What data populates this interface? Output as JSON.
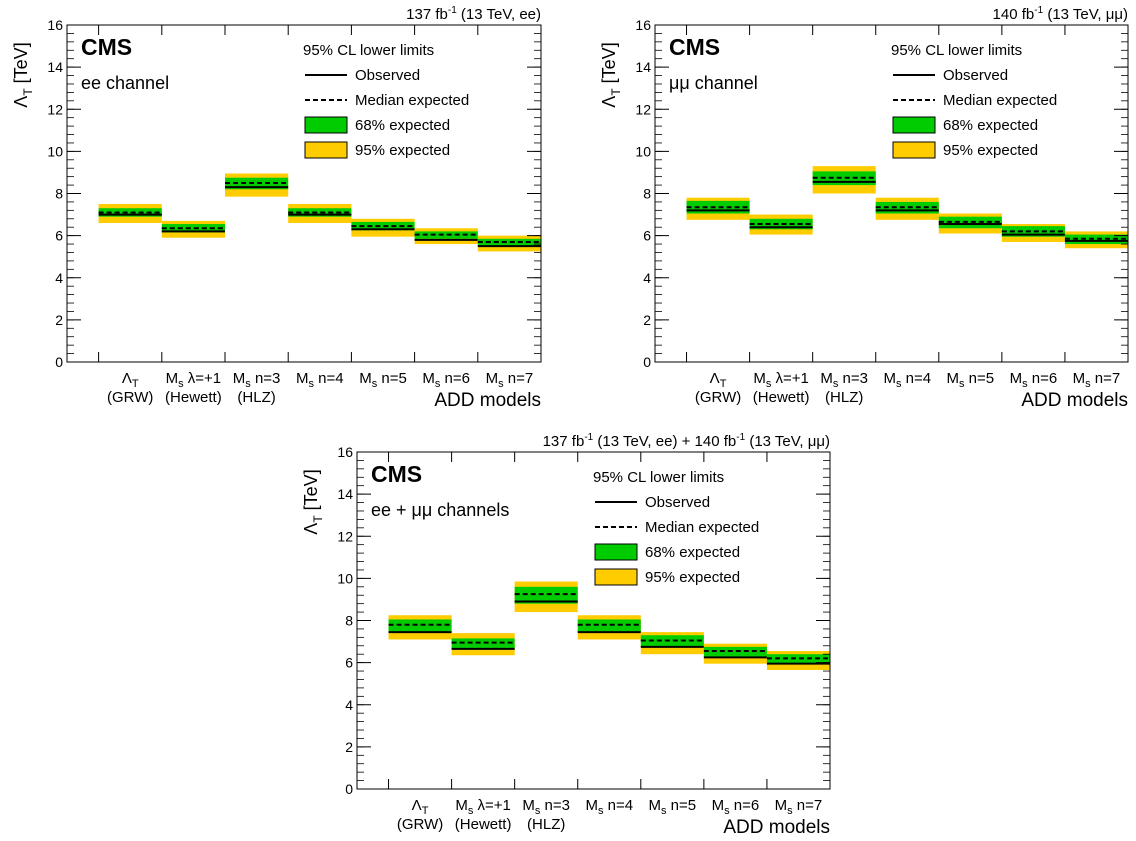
{
  "colors": {
    "band68": "#00cc00",
    "band95": "#ffcc00",
    "line": "#000000"
  },
  "categories": [
    "Λ_T (GRW)",
    "M_s λ=+1 (Hewett)",
    "M_s n=3 (HLZ)",
    "M_s n=4",
    "M_s n=5",
    "M_s n=6",
    "M_s n=7"
  ],
  "category_labels": [
    {
      "main": "Λ",
      "sub": "T",
      "rest": "",
      "line2": "(GRW)"
    },
    {
      "main": "M",
      "sub": "s",
      "rest": " λ=+1",
      "line2": "(Hewett)"
    },
    {
      "main": "M",
      "sub": "s",
      "rest": " n=3",
      "line2": "(HLZ)"
    },
    {
      "main": "M",
      "sub": "s",
      "rest": " n=4",
      "line2": ""
    },
    {
      "main": "M",
      "sub": "s",
      "rest": " n=5",
      "line2": ""
    },
    {
      "main": "M",
      "sub": "s",
      "rest": " n=6",
      "line2": ""
    },
    {
      "main": "M",
      "sub": "s",
      "rest": " n=7",
      "line2": ""
    }
  ],
  "yticks": [
    0,
    2,
    4,
    6,
    8,
    10,
    12,
    14,
    16
  ],
  "ylabel": {
    "main": "Λ",
    "sub": "T",
    "rest": " [TeV]"
  },
  "xlabel": "ADD models",
  "cms_label": "CMS",
  "legend": {
    "title": "95% CL lower limits",
    "observed": "Observed",
    "expected": "Median expected",
    "band68": "68% expected",
    "band95": "95% expected"
  },
  "chart_data": [
    {
      "type": "bar",
      "lumi_label": [
        {
          "t": "137 fb"
        },
        {
          "t": "-1",
          "sup": true
        },
        {
          "t": " (13 TeV, ee)"
        }
      ],
      "channel_label": "ee channel",
      "ylim": [
        0,
        16
      ],
      "categories": [
        "Λ_T (GRW)",
        "M_s λ=+1 (Hewett)",
        "M_s n=3 (HLZ)",
        "M_s n=4",
        "M_s n=5",
        "M_s n=6",
        "M_s n=7"
      ],
      "series": [
        {
          "name": "Observed",
          "values": [
            7.0,
            6.2,
            8.3,
            7.0,
            6.3,
            5.8,
            5.5
          ]
        },
        {
          "name": "Median expected",
          "values": [
            7.1,
            6.35,
            8.5,
            7.1,
            6.45,
            6.05,
            5.7
          ]
        },
        {
          "name": "68% expected",
          "low": [
            6.9,
            6.15,
            8.2,
            6.9,
            6.25,
            5.85,
            5.5
          ],
          "high": [
            7.3,
            6.55,
            8.75,
            7.3,
            6.65,
            6.2,
            5.85
          ]
        },
        {
          "name": "95% expected",
          "low": [
            6.6,
            5.9,
            7.85,
            6.6,
            5.95,
            5.6,
            5.25
          ],
          "high": [
            7.5,
            6.7,
            8.95,
            7.5,
            6.8,
            6.35,
            6.0
          ]
        }
      ]
    },
    {
      "type": "bar",
      "lumi_label": [
        {
          "t": "140 fb"
        },
        {
          "t": "-1",
          "sup": true
        },
        {
          "t": " (13 TeV, μμ)"
        }
      ],
      "channel_label": "μμ channel",
      "ylim": [
        0,
        16
      ],
      "categories": [
        "Λ_T (GRW)",
        "M_s λ=+1 (Hewett)",
        "M_s n=3 (HLZ)",
        "M_s n=4",
        "M_s n=5",
        "M_s n=6",
        "M_s n=7"
      ],
      "series": [
        {
          "name": "Observed",
          "values": [
            7.2,
            6.4,
            8.55,
            7.2,
            6.55,
            6.05,
            5.75
          ]
        },
        {
          "name": "Median expected",
          "values": [
            7.35,
            6.55,
            8.75,
            7.35,
            6.65,
            6.2,
            5.85
          ]
        },
        {
          "name": "68% expected",
          "low": [
            7.05,
            6.3,
            8.4,
            7.05,
            6.35,
            5.95,
            5.6
          ],
          "high": [
            7.65,
            6.8,
            9.05,
            7.6,
            6.9,
            6.45,
            6.05
          ]
        },
        {
          "name": "95% expected",
          "low": [
            6.75,
            6.05,
            8.0,
            6.75,
            6.1,
            5.7,
            5.4
          ],
          "high": [
            7.8,
            7.0,
            9.3,
            7.8,
            7.05,
            6.55,
            6.2
          ]
        }
      ]
    },
    {
      "type": "bar",
      "lumi_label": [
        {
          "t": "137 fb"
        },
        {
          "t": "-1",
          "sup": true
        },
        {
          "t": " (13 TeV, ee) + 140 fb"
        },
        {
          "t": "-1",
          "sup": true
        },
        {
          "t": " (13 TeV, μμ)"
        }
      ],
      "channel_label": "ee + μμ channels",
      "ylim": [
        0,
        16
      ],
      "categories": [
        "Λ_T (GRW)",
        "M_s λ=+1 (Hewett)",
        "M_s n=3 (HLZ)",
        "M_s n=4",
        "M_s n=5",
        "M_s n=6",
        "M_s n=7"
      ],
      "series": [
        {
          "name": "Observed",
          "values": [
            7.45,
            6.65,
            8.9,
            7.45,
            6.75,
            6.25,
            5.95
          ]
        },
        {
          "name": "Median expected",
          "values": [
            7.8,
            6.95,
            9.25,
            7.8,
            7.05,
            6.55,
            6.2
          ]
        },
        {
          "name": "68% expected",
          "low": [
            7.45,
            6.65,
            8.8,
            7.45,
            6.75,
            6.25,
            5.95
          ],
          "high": [
            8.05,
            7.15,
            9.6,
            8.05,
            7.3,
            6.75,
            6.4
          ]
        },
        {
          "name": "95% expected",
          "low": [
            7.1,
            6.35,
            8.4,
            7.1,
            6.4,
            5.95,
            5.65
          ],
          "high": [
            8.25,
            7.4,
            9.85,
            8.25,
            7.45,
            6.9,
            6.55
          ]
        }
      ]
    }
  ]
}
